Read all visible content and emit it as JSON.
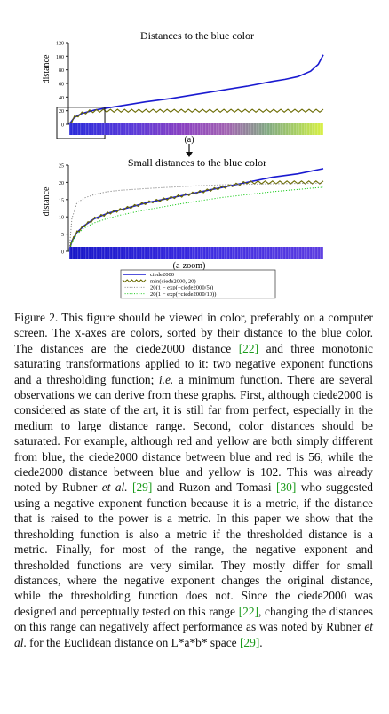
{
  "figure": {
    "label": "Figure 2.",
    "chart_data": [
      {
        "type": "line",
        "title": "Distances to the blue color",
        "ylabel": "distance",
        "xlabel": "(a)",
        "ylim": [
          0,
          120
        ],
        "yticks": [
          0,
          20,
          40,
          60,
          80,
          100,
          120
        ],
        "x_range": [
          0,
          100
        ],
        "series": [
          {
            "name": "ciede2000",
            "color": "#1a1ad0",
            "x": [
              0,
              2,
              5,
              10,
              15,
              20,
              30,
              40,
              50,
              60,
              70,
              80,
              85,
              90,
              95,
              98,
              100
            ],
            "y": [
              0,
              10,
              16,
              21,
              24,
              27,
              33,
              38,
              44,
              50,
              56,
              63,
              66,
              70,
              78,
              88,
              102
            ]
          },
          {
            "name": "min(ciede2000, 20)",
            "color": "#6a6a00",
            "x": [
              0,
              2,
              5,
              8,
              12,
              100
            ],
            "y": [
              0,
              10,
              16,
              19,
              20,
              20
            ]
          }
        ],
        "zoom_box": {
          "x": [
            0,
            14
          ],
          "y": [
            0,
            25
          ]
        }
      },
      {
        "type": "line",
        "title": "Small distances to the blue color",
        "ylabel": "distance",
        "xlabel": "(a-zoom)",
        "ylim": [
          0,
          25
        ],
        "yticks": [
          0,
          5,
          10,
          15,
          20,
          25
        ],
        "x_range": [
          0,
          100
        ],
        "series": [
          {
            "name": "ciede2000",
            "color": "#1a1ad0",
            "x": [
              0,
              1,
              3,
              6,
              10,
              15,
              20,
              30,
              40,
              50,
              60,
              70,
              80,
              90,
              100
            ],
            "y": [
              0,
              3,
              5.5,
              7.5,
              9.5,
              11,
              12,
              14,
              15.5,
              17,
              18.5,
              20,
              21.5,
              22.5,
              24
            ]
          },
          {
            "name": "min(ciede2000, 20)",
            "color": "#6a6a00",
            "x": [
              0,
              1,
              3,
              6,
              10,
              15,
              20,
              30,
              40,
              50,
              60,
              70,
              100
            ],
            "y": [
              0,
              3,
              5.5,
              7.5,
              9.5,
              11,
              12,
              14,
              15.5,
              17,
              18.5,
              20,
              20
            ]
          },
          {
            "name": "20(1 − exp(−ciede2000/5))",
            "color": "#888888",
            "x": [
              0,
              1,
              3,
              6,
              10,
              15,
              20,
              30,
              40,
              50,
              60,
              80,
              100
            ],
            "y": [
              0,
              9.5,
              14,
              15.5,
              16.5,
              17.3,
              17.7,
              18.2,
              18.6,
              19,
              19.3,
              19.6,
              19.8
            ]
          },
          {
            "name": "20(1 − exp(−ciede2000/10))",
            "color": "#22cc22",
            "x": [
              0,
              1,
              3,
              6,
              10,
              15,
              20,
              30,
              40,
              50,
              60,
              80,
              100
            ],
            "y": [
              0,
              2.5,
              5,
              6.8,
              8.3,
              9.5,
              10.5,
              12,
              13.3,
              14.5,
              15.6,
              17.3,
              18.6
            ]
          }
        ]
      }
    ],
    "legend": [
      {
        "label": "ciede2000",
        "color": "#1a1ad0",
        "style": "solid"
      },
      {
        "label": "min(ciede2000, 20)",
        "color": "#6a6a00",
        "style": "zigzag"
      },
      {
        "label": "20(1 − exp(−ciede2000/5))",
        "color": "#888888",
        "style": "dotted"
      },
      {
        "label": "20(1 − exp(−ciede2000/10))",
        "color": "#22cc22",
        "style": "dotted"
      }
    ]
  },
  "caption": {
    "label": "Figure 2.",
    "t1": "This figure should be viewed in color, preferably on a computer screen. The x-axes are colors, sorted by their distance to the blue color. The distances are the ciede2000 distance ",
    "r1": "[22]",
    "t2": " and three monotonic saturating transformations applied to it: two negative exponent functions and a thresholding function; ",
    "ie": "i.e.",
    "t3": " a minimum function. There are several observations we can derive from these graphs. First, although ciede2000 is considered as state of the art, it is still far from perfect, especially in the medium to large distance range. Second, color distances should be saturated. For example, although red and yellow are both simply different from blue, the ciede2000 distance between blue and red is 56, while the ciede2000 distance between blue and yellow is 102. This was already noted by Rubner ",
    "etal1": "et al.",
    "t4": " ",
    "r2": "[29]",
    "t5": " and Ruzon and Tomasi ",
    "r3": "[30]",
    "t6": " who suggested using a negative exponent function because it is a metric, if the distance that is raised to the power is a metric. In this paper we show that the thresholding function is also a metric if the thresholded distance is a metric. Finally, for most of the range, the negative exponent and thresholded functions are very similar. They mostly differ for small distances, where the negative exponent changes the original distance, while the thresholding function does not. Since the ciede2000 was designed and perceptually tested on this range ",
    "r4": "[22]",
    "t7": ", changing the distances on this range can negatively affect performance as was noted by Rubner ",
    "etal2": "et al",
    "t8": ". for the Euclidean distance on L*a*b* space ",
    "r5": "[29]",
    "t9": "."
  }
}
